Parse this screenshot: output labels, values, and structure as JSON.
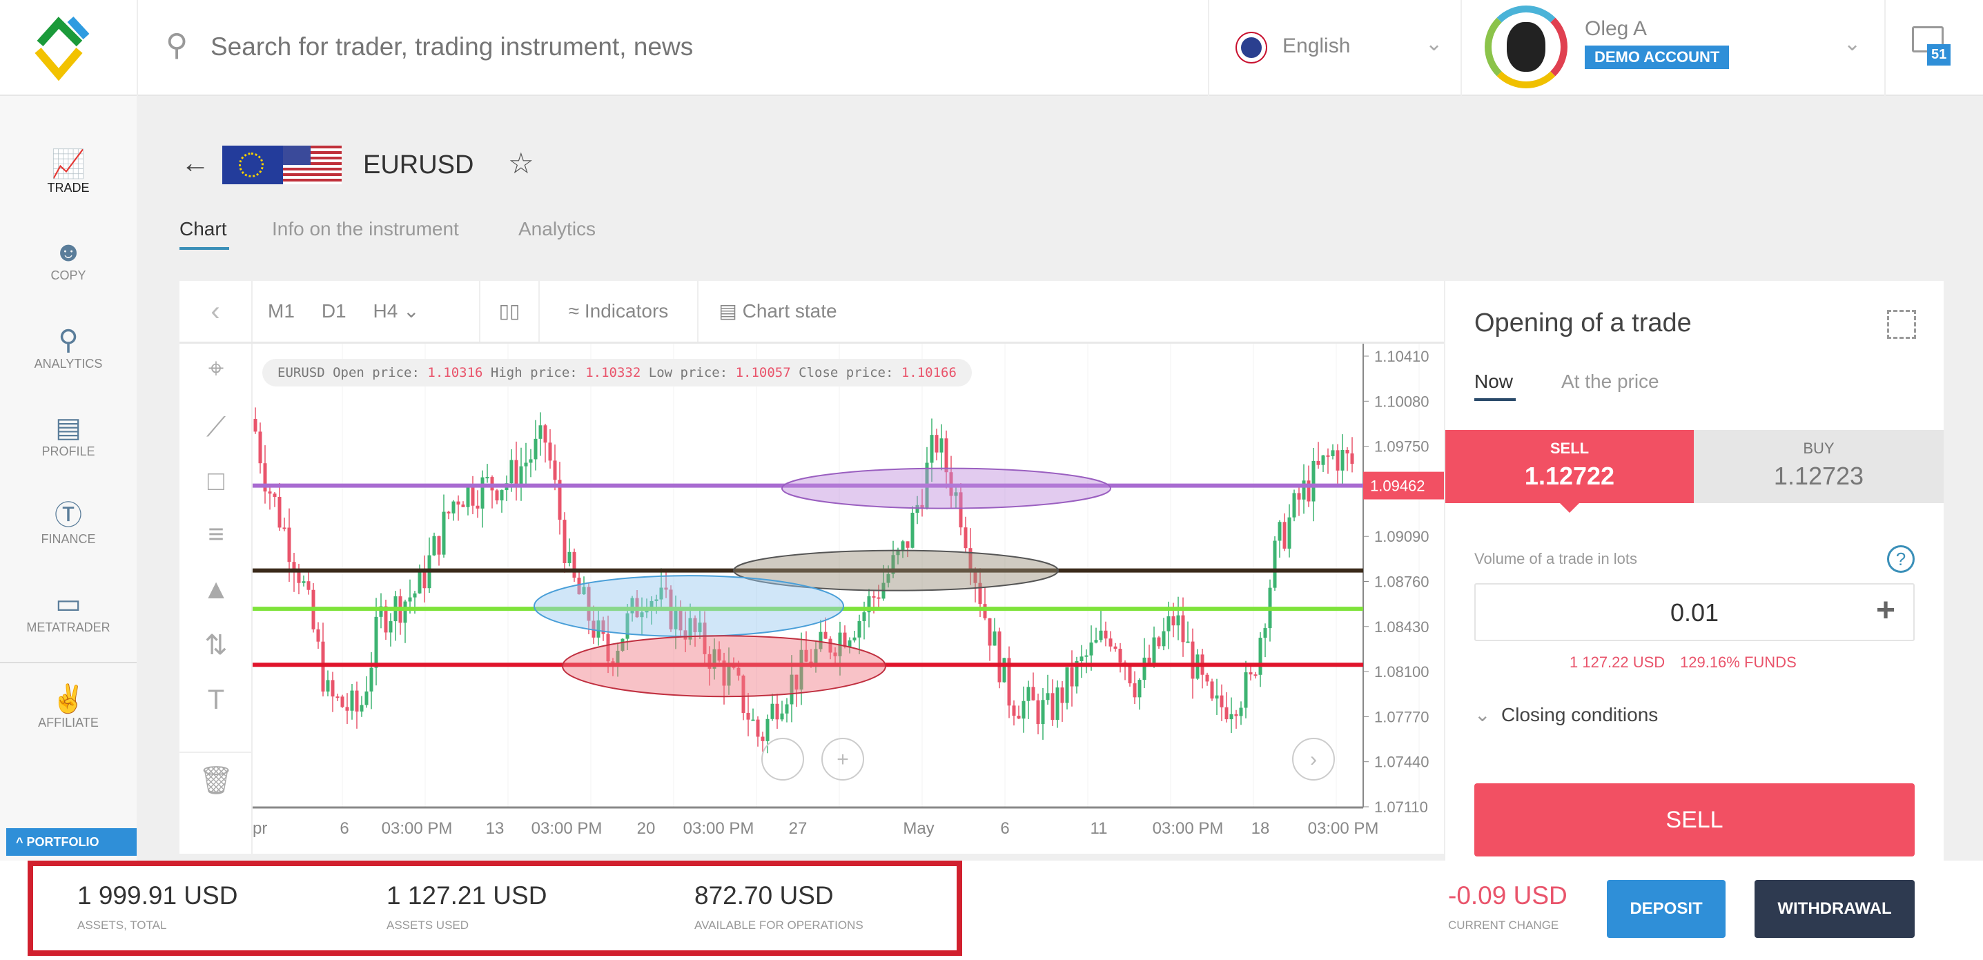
{
  "header": {
    "search_placeholder": "Search for trader, trading instrument, news",
    "language": "English",
    "user_name": "Oleg A",
    "account_badge": "DEMO ACCOUNT",
    "notification_count": "51"
  },
  "sidebar": {
    "items": [
      {
        "label": "TRADE",
        "icon": "chart-bars-icon"
      },
      {
        "label": "COPY",
        "icon": "person-icon"
      },
      {
        "label": "ANALYTICS",
        "icon": "analytics-icon"
      },
      {
        "label": "PROFILE",
        "icon": "id-card-icon"
      },
      {
        "label": "FINANCE",
        "icon": "dollar-icon"
      },
      {
        "label": "METATRADER",
        "icon": "window-icon"
      },
      {
        "label": "AFFILIATE",
        "icon": "handshake-icon"
      }
    ],
    "portfolio_label": "PORTFOLIO"
  },
  "instrument": {
    "symbol": "EURUSD"
  },
  "tabs": [
    {
      "label": "Chart",
      "active": true
    },
    {
      "label": "Info on the instrument"
    },
    {
      "label": "Analytics"
    }
  ],
  "chart": {
    "toolbar": {
      "m1": "M1",
      "d1": "D1",
      "h4": "H4",
      "indicators": "Indicators",
      "chart_state": "Chart state"
    },
    "info": {
      "symbol": "EURUSD",
      "open_label": "Open price:",
      "open": "1.10316",
      "high_label": "High price:",
      "high": "1.10332",
      "low_label": "Low price:",
      "low": "1.10057",
      "close_label": "Close price:",
      "close": "1.10166"
    },
    "price_ticks": [
      "1.10410",
      "1.10080",
      "1.09750",
      "1.09090",
      "1.08760",
      "1.08430",
      "1.08100",
      "1.07770",
      "1.07440",
      "1.07110"
    ],
    "current_price": "1.09462",
    "x_ticks": [
      "pr",
      "6",
      "03:00 PM",
      "13",
      "03:00 PM",
      "20",
      "03:00 PM",
      "27",
      "May",
      "6",
      "11",
      "03:00 PM",
      "18",
      "03:00 PM"
    ],
    "colors": {
      "up": "#3cb371",
      "down": "#e9546b",
      "purple": "#a86bd1",
      "black": "#3a2a1a",
      "green": "#7ee33a",
      "red": "#e0142b"
    }
  },
  "trade": {
    "title": "Opening of a trade",
    "tabs": [
      "Now",
      "At the price"
    ],
    "sell_label": "SELL",
    "sell_price": "1.12722",
    "buy_label": "BUY",
    "buy_price": "1.12723",
    "volume_label": "Volume of a trade in lots",
    "volume": "0.01",
    "margin": "1 127.22 USD",
    "funds": "129.16% FUNDS",
    "closing_conditions": "Closing conditions",
    "sell_button": "SELL"
  },
  "footer": {
    "assets_total": "1 999.91 USD",
    "assets_total_label": "ASSETS, TOTAL",
    "assets_used": "1 127.21 USD",
    "assets_used_label": "ASSETS USED",
    "available": "872.70 USD",
    "available_label": "AVAILABLE FOR OPERATIONS",
    "current_change": "-0.09 USD",
    "current_change_label": "CURRENT CHANGE",
    "deposit": "DEPOSIT",
    "withdrawal": "WITHDRAWAL"
  }
}
